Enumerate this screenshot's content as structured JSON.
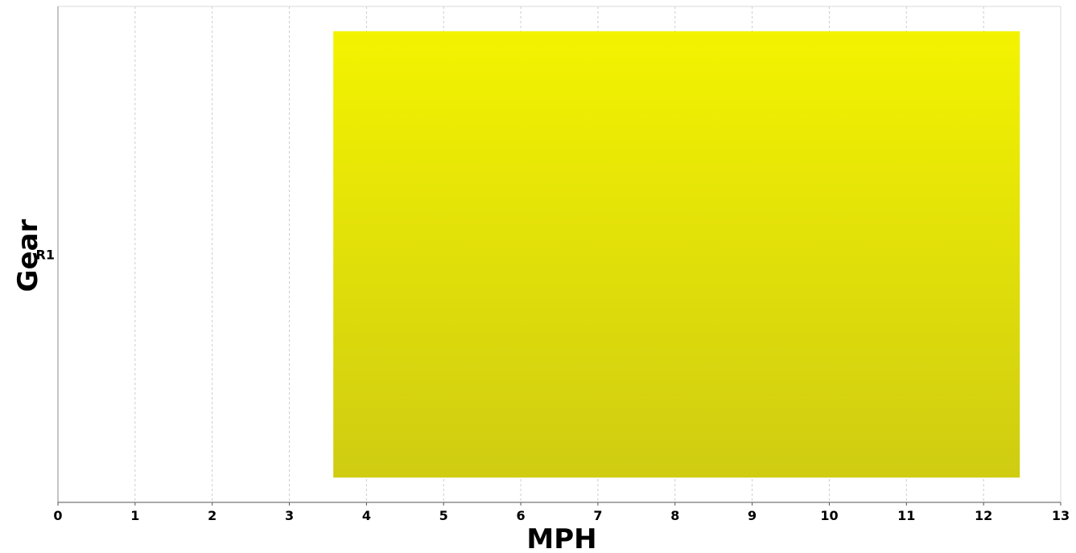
{
  "chart_data": {
    "type": "bar",
    "orientation": "horizontal",
    "title": "",
    "xlabel": "MPH",
    "ylabel": "Gear",
    "xlim": [
      0,
      13
    ],
    "xticks": [
      0,
      1,
      2,
      3,
      4,
      5,
      6,
      7,
      8,
      9,
      10,
      11,
      12,
      13
    ],
    "categories": [
      "R1"
    ],
    "series": [
      {
        "ranges": [
          [
            3.57,
            12.47
          ]
        ],
        "color_top": "#f3f300",
        "color_bottom": "#cfcc12"
      }
    ],
    "grid": {
      "vertical": true,
      "horizontal": false,
      "style": "dashed",
      "color": "#cccccc"
    },
    "legend": "none"
  }
}
